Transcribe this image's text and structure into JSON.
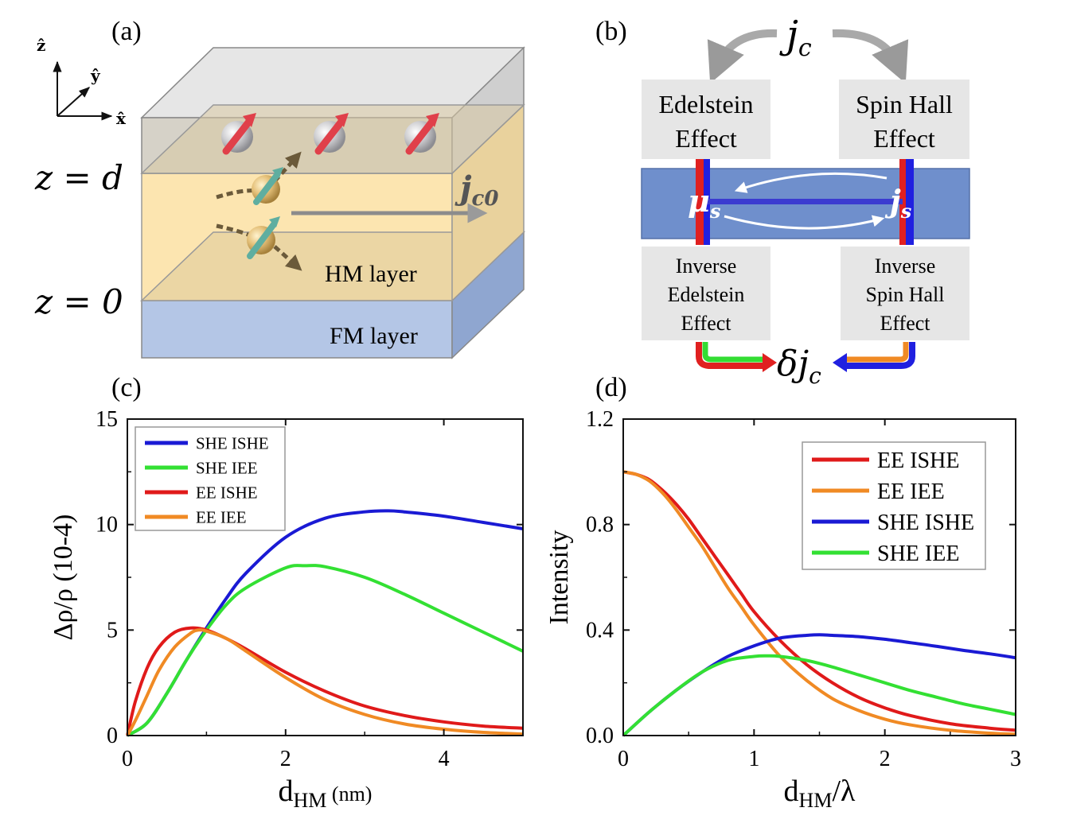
{
  "panels": {
    "a": {
      "tag": "(a)",
      "axes": {
        "z": "ẑ",
        "y": "ŷ",
        "x": "x̂"
      },
      "z_top": "z = d",
      "z_bottom": "z = 0",
      "current": "j",
      "current_sub": "c0",
      "hm_label": "HM layer",
      "fm_label": "FM layer"
    },
    "b": {
      "tag": "(b)",
      "jc": "j",
      "jc_sub": "c",
      "boxes": {
        "edelstein": [
          "Edelstein",
          "Effect"
        ],
        "spinhall": [
          "Spin Hall",
          "Effect"
        ],
        "inv_edelstein": [
          "Inverse",
          "Edelstein",
          "Effect"
        ],
        "inv_spinhall": [
          "Inverse",
          "Spin Hall",
          "Effect"
        ]
      },
      "mu": "μ",
      "mu_sub": "s",
      "js": "j",
      "js_sub": "s",
      "djc": "δj",
      "djc_sub": "c"
    },
    "c": {
      "tag": "(c)"
    },
    "d": {
      "tag": "(d)"
    }
  },
  "chart_data": [
    {
      "type": "line",
      "panel": "c",
      "ylabel": "Δρ/ρ (10-4)",
      "xlabel_main": "d",
      "xlabel_sub": "HM",
      "xlabel_unit": " (nm)",
      "xlim": [
        0,
        5
      ],
      "ylim": [
        0,
        15
      ],
      "xticks": [
        0,
        2,
        4
      ],
      "yticks": [
        0,
        5,
        10,
        15
      ],
      "legend": "top-left",
      "series": [
        {
          "name": "SHE ISHE",
          "color": "#1a1ad4",
          "x": [
            0,
            0.25,
            0.5,
            0.75,
            1.0,
            1.25,
            1.5,
            2.0,
            2.5,
            3.0,
            3.3,
            3.5,
            4.0,
            4.5,
            5.0
          ],
          "y": [
            0,
            0.6,
            2.0,
            3.6,
            5.1,
            6.5,
            7.7,
            9.4,
            10.3,
            10.6,
            10.65,
            10.6,
            10.4,
            10.1,
            9.8
          ]
        },
        {
          "name": "SHE IEE",
          "color": "#33e033",
          "x": [
            0,
            0.25,
            0.5,
            0.75,
            1.0,
            1.25,
            1.5,
            2.0,
            2.25,
            2.5,
            3.0,
            3.5,
            4.0,
            4.5,
            5.0
          ],
          "y": [
            0,
            0.6,
            2.0,
            3.6,
            5.0,
            6.2,
            7.0,
            7.95,
            8.05,
            8.0,
            7.5,
            6.7,
            5.8,
            4.9,
            4.0
          ]
        },
        {
          "name": "EE ISHE",
          "color": "#e01a1a",
          "x": [
            0,
            0.1,
            0.25,
            0.4,
            0.6,
            0.8,
            1.0,
            1.25,
            1.5,
            2.0,
            2.5,
            3.0,
            3.5,
            4.0,
            4.5,
            5.0
          ],
          "y": [
            0,
            1.6,
            3.2,
            4.2,
            4.9,
            5.1,
            5.0,
            4.6,
            4.1,
            3.0,
            2.1,
            1.4,
            0.95,
            0.65,
            0.45,
            0.35
          ]
        },
        {
          "name": "EE IEE",
          "color": "#f08a24",
          "x": [
            0,
            0.1,
            0.25,
            0.4,
            0.6,
            0.8,
            0.9,
            1.0,
            1.25,
            1.5,
            2.0,
            2.5,
            3.0,
            3.5,
            4.0,
            4.5,
            5.0
          ],
          "y": [
            0,
            0.7,
            1.9,
            3.1,
            4.2,
            4.85,
            5.0,
            4.95,
            4.6,
            4.0,
            2.75,
            1.7,
            1.0,
            0.55,
            0.3,
            0.15,
            0.07
          ]
        }
      ]
    },
    {
      "type": "line",
      "panel": "d",
      "ylabel": "Intensity",
      "xlabel_main": "d",
      "xlabel_sub": "HM",
      "xlabel_unit": "/λ",
      "xlim": [
        0,
        3
      ],
      "ylim": [
        0,
        1.2
      ],
      "xticks": [
        0,
        1,
        2,
        3
      ],
      "yticks": [
        "0.0",
        "0.4",
        "0.8",
        "1.2"
      ],
      "legend": "top-right",
      "series": [
        {
          "name": "EE ISHE",
          "color": "#e01a1a",
          "x": [
            0,
            0.1,
            0.2,
            0.3,
            0.4,
            0.5,
            0.6,
            0.7,
            0.8,
            0.9,
            1.0,
            1.2,
            1.4,
            1.6,
            1.8,
            2.0,
            2.2,
            2.5,
            2.8,
            3.0
          ],
          "y": [
            1.0,
            0.99,
            0.97,
            0.93,
            0.88,
            0.82,
            0.75,
            0.68,
            0.61,
            0.54,
            0.47,
            0.36,
            0.27,
            0.2,
            0.145,
            0.105,
            0.075,
            0.045,
            0.028,
            0.02
          ]
        },
        {
          "name": "EE IEE",
          "color": "#f08a24",
          "x": [
            0,
            0.1,
            0.2,
            0.3,
            0.4,
            0.5,
            0.6,
            0.7,
            0.8,
            0.9,
            1.0,
            1.2,
            1.4,
            1.6,
            1.8,
            2.0,
            2.2,
            2.5,
            2.8,
            3.0
          ],
          "y": [
            1.0,
            0.99,
            0.965,
            0.92,
            0.86,
            0.79,
            0.72,
            0.64,
            0.56,
            0.49,
            0.42,
            0.3,
            0.21,
            0.14,
            0.095,
            0.062,
            0.04,
            0.02,
            0.009,
            0.005
          ]
        },
        {
          "name": "SHE ISHE",
          "color": "#1a1ad4",
          "x": [
            0,
            0.2,
            0.4,
            0.6,
            0.8,
            1.0,
            1.2,
            1.4,
            1.5,
            1.6,
            1.8,
            2.0,
            2.2,
            2.4,
            2.6,
            2.8,
            3.0
          ],
          "y": [
            0,
            0.09,
            0.17,
            0.24,
            0.3,
            0.34,
            0.37,
            0.38,
            0.382,
            0.38,
            0.375,
            0.365,
            0.352,
            0.338,
            0.323,
            0.31,
            0.295
          ]
        },
        {
          "name": "SHE IEE",
          "color": "#33e033",
          "x": [
            0,
            0.2,
            0.4,
            0.6,
            0.8,
            1.0,
            1.1,
            1.2,
            1.4,
            1.6,
            1.8,
            2.0,
            2.2,
            2.4,
            2.6,
            2.8,
            3.0
          ],
          "y": [
            0,
            0.09,
            0.17,
            0.24,
            0.285,
            0.3,
            0.302,
            0.3,
            0.285,
            0.26,
            0.23,
            0.2,
            0.17,
            0.145,
            0.12,
            0.1,
            0.08
          ]
        }
      ]
    }
  ]
}
